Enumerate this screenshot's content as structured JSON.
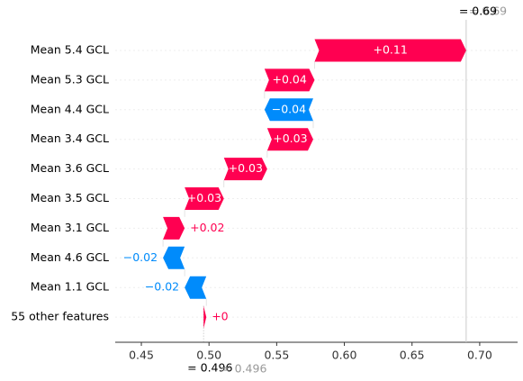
{
  "chart_data": {
    "type": "waterfall",
    "categories": [
      "Mean 5.4 GCL",
      "Mean 5.3 GCL",
      "Mean 4.4 GCL",
      "Mean 3.4 GCL",
      "Mean 3.6 GCL",
      "Mean 3.5 GCL",
      "Mean 3.1 GCL",
      "Mean 4.6 GCL",
      "Mean 1.1 GCL",
      "55 other features"
    ],
    "values": [
      0.112,
      0.037,
      -0.036,
      0.034,
      0.032,
      0.029,
      0.016,
      -0.016,
      -0.016,
      0.002
    ],
    "value_labels": [
      "+0.11",
      "+0.04",
      "−0.04",
      "+0.03",
      "+0.03",
      "+0.03",
      "+0.02",
      "−0.02",
      "−0.02",
      "+0"
    ],
    "base_value": 0.496,
    "base_value_label": "= 0.496",
    "output_value": 0.69,
    "output_value_label": "= 0.69",
    "positive_color": "#ff0051",
    "negative_color": "#008bfb",
    "xlim": [
      0.4307,
      0.728
    ],
    "xticks": [
      0.45,
      {
        "value": 0.5,
        "label": "0.50"
      },
      0.55,
      {
        "value": 0.6,
        "label": "0.60"
      },
      0.65,
      {
        "value": 0.7,
        "label": "0.70"
      }
    ]
  }
}
